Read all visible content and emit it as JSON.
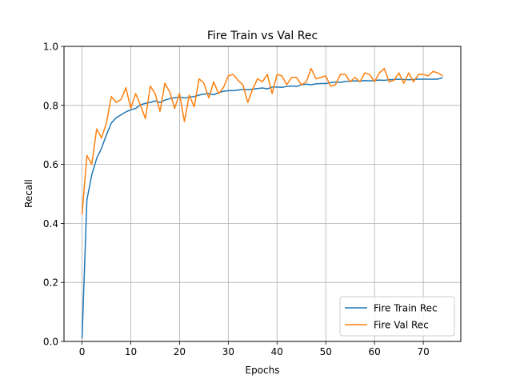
{
  "chart_data": {
    "type": "line",
    "title": "Fire Train vs Val Rec",
    "xlabel": "Epochs",
    "ylabel": "Recall",
    "xlim": [
      -3.7,
      77.7
    ],
    "ylim": [
      0.0,
      1.0
    ],
    "xticks": [
      0,
      10,
      20,
      30,
      40,
      50,
      60,
      70
    ],
    "yticks": [
      0.0,
      0.2,
      0.4,
      0.6,
      0.8,
      1.0
    ],
    "ytick_labels": [
      "0.0",
      "0.2",
      "0.4",
      "0.6",
      "0.8",
      "1.0"
    ],
    "grid": true,
    "legend": "lower-right",
    "series": [
      {
        "name": "Fire Train Rec",
        "color": "#1f77b4",
        "x": [
          0,
          1,
          2,
          3,
          4,
          5,
          6,
          7,
          8,
          9,
          10,
          11,
          12,
          13,
          14,
          15,
          16,
          17,
          18,
          19,
          20,
          21,
          22,
          23,
          24,
          25,
          26,
          27,
          28,
          29,
          30,
          31,
          32,
          33,
          34,
          35,
          36,
          37,
          38,
          39,
          40,
          41,
          42,
          43,
          44,
          45,
          46,
          47,
          48,
          49,
          50,
          51,
          52,
          53,
          54,
          55,
          56,
          57,
          58,
          59,
          60,
          61,
          62,
          63,
          64,
          65,
          66,
          67,
          68,
          69,
          70,
          71,
          72,
          73,
          74
        ],
        "values": [
          0.01,
          0.48,
          0.565,
          0.62,
          0.655,
          0.7,
          0.74,
          0.758,
          0.768,
          0.778,
          0.785,
          0.79,
          0.802,
          0.807,
          0.81,
          0.815,
          0.81,
          0.818,
          0.823,
          0.826,
          0.828,
          0.825,
          0.828,
          0.83,
          0.835,
          0.838,
          0.84,
          0.836,
          0.843,
          0.848,
          0.85,
          0.85,
          0.852,
          0.854,
          0.853,
          0.855,
          0.857,
          0.859,
          0.856,
          0.862,
          0.862,
          0.861,
          0.864,
          0.866,
          0.864,
          0.87,
          0.872,
          0.87,
          0.873,
          0.874,
          0.874,
          0.877,
          0.879,
          0.878,
          0.881,
          0.882,
          0.883,
          0.882,
          0.884,
          0.883,
          0.884,
          0.886,
          0.885,
          0.887,
          0.888,
          0.889,
          0.888,
          0.887,
          0.888,
          0.889,
          0.889,
          0.889,
          0.889,
          0.889,
          0.894
        ]
      },
      {
        "name": "Fire Val Rec",
        "color": "#ff7f0e",
        "x": [
          0,
          1,
          2,
          3,
          4,
          5,
          6,
          7,
          8,
          9,
          10,
          11,
          12,
          13,
          14,
          15,
          16,
          17,
          18,
          19,
          20,
          21,
          22,
          23,
          24,
          25,
          26,
          27,
          28,
          29,
          30,
          31,
          32,
          33,
          34,
          35,
          36,
          37,
          38,
          39,
          40,
          41,
          42,
          43,
          44,
          45,
          46,
          47,
          48,
          49,
          50,
          51,
          52,
          53,
          54,
          55,
          56,
          57,
          58,
          59,
          60,
          61,
          62,
          63,
          64,
          65,
          66,
          67,
          68,
          69,
          70,
          71,
          72,
          73,
          74
        ],
        "values": [
          0.43,
          0.63,
          0.6,
          0.72,
          0.69,
          0.74,
          0.83,
          0.81,
          0.82,
          0.86,
          0.79,
          0.84,
          0.8,
          0.755,
          0.865,
          0.84,
          0.78,
          0.875,
          0.845,
          0.79,
          0.84,
          0.745,
          0.835,
          0.795,
          0.89,
          0.875,
          0.825,
          0.88,
          0.84,
          0.86,
          0.9,
          0.905,
          0.885,
          0.87,
          0.81,
          0.855,
          0.89,
          0.88,
          0.905,
          0.84,
          0.905,
          0.9,
          0.87,
          0.895,
          0.895,
          0.87,
          0.88,
          0.925,
          0.89,
          0.895,
          0.9,
          0.865,
          0.87,
          0.905,
          0.905,
          0.88,
          0.895,
          0.88,
          0.91,
          0.905,
          0.88,
          0.91,
          0.925,
          0.88,
          0.885,
          0.91,
          0.875,
          0.91,
          0.88,
          0.905,
          0.905,
          0.9,
          0.915,
          0.91,
          0.9
        ]
      }
    ]
  }
}
